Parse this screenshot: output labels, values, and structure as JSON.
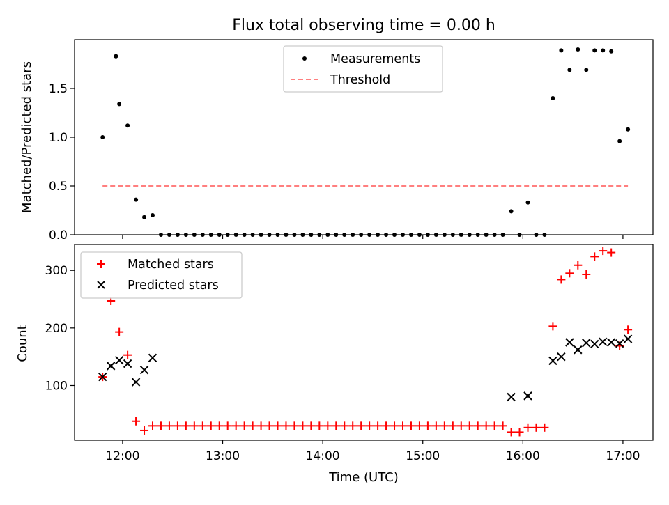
{
  "chart_data": {
    "type": "scatter",
    "title": "Flux total observing time = 0.00 h",
    "xlabel": "Time (UTC)",
    "xticks": [
      "12:00",
      "13:00",
      "14:00",
      "15:00",
      "16:00",
      "17:00"
    ],
    "x_tick_hours": [
      12,
      13,
      14,
      15,
      16,
      17
    ],
    "xlim": [
      11.52,
      17.3
    ],
    "panels": [
      {
        "ylabel": "Matched/Predicted stars",
        "ylim": [
          0,
          2.0
        ],
        "yticks": [
          "0.0",
          "0.5",
          "1.0",
          "1.5"
        ],
        "ytick_values": [
          0,
          0.5,
          1.0,
          1.5
        ],
        "legend": {
          "position": "upper center",
          "entries": [
            "Measurements",
            "Threshold"
          ]
        },
        "series": [
          {
            "name": "Measurements",
            "marker": "dot",
            "color": "#000000",
            "points": [
              [
                "11:48",
                1.0
              ],
              [
                "11:56",
                1.83
              ],
              [
                "11:56",
                1.83
              ],
              [
                "11:58",
                1.34
              ],
              [
                "12:03",
                1.12
              ],
              [
                "12:08",
                0.36
              ],
              [
                "12:13",
                0.18
              ],
              [
                "12:18",
                0.2
              ],
              [
                "12:23",
                0.0
              ],
              [
                "12:28",
                0.0
              ],
              [
                "12:33",
                0.0
              ],
              [
                "12:38",
                0.0
              ],
              [
                "12:43",
                0.0
              ],
              [
                "12:48",
                0.0
              ],
              [
                "12:53",
                0.0
              ],
              [
                "12:58",
                0.0
              ],
              [
                "13:03",
                0.0
              ],
              [
                "13:08",
                0.0
              ],
              [
                "13:13",
                0.0
              ],
              [
                "13:18",
                0.0
              ],
              [
                "13:23",
                0.0
              ],
              [
                "13:28",
                0.0
              ],
              [
                "13:33",
                0.0
              ],
              [
                "13:38",
                0.0
              ],
              [
                "13:43",
                0.0
              ],
              [
                "13:48",
                0.0
              ],
              [
                "13:53",
                0.0
              ],
              [
                "13:58",
                0.0
              ],
              [
                "14:03",
                0.0
              ],
              [
                "14:08",
                0.0
              ],
              [
                "14:13",
                0.0
              ],
              [
                "14:18",
                0.0
              ],
              [
                "14:23",
                0.0
              ],
              [
                "14:28",
                0.0
              ],
              [
                "14:33",
                0.0
              ],
              [
                "14:38",
                0.0
              ],
              [
                "14:43",
                0.0
              ],
              [
                "14:48",
                0.0
              ],
              [
                "14:53",
                0.0
              ],
              [
                "14:58",
                0.0
              ],
              [
                "15:03",
                0.0
              ],
              [
                "15:08",
                0.0
              ],
              [
                "15:13",
                0.0
              ],
              [
                "15:18",
                0.0
              ],
              [
                "15:23",
                0.0
              ],
              [
                "15:28",
                0.0
              ],
              [
                "15:33",
                0.0
              ],
              [
                "15:38",
                0.0
              ],
              [
                "15:43",
                0.0
              ],
              [
                "15:48",
                0.0
              ],
              [
                "15:53",
                0.24
              ],
              [
                "15:58",
                0.0
              ],
              [
                "16:03",
                0.33
              ],
              [
                "16:08",
                0.0
              ],
              [
                "16:13",
                0.0
              ],
              [
                "16:18",
                1.4
              ],
              [
                "16:23",
                1.89
              ],
              [
                "16:28",
                1.69
              ],
              [
                "16:33",
                1.9
              ],
              [
                "16:38",
                1.69
              ],
              [
                "16:43",
                1.89
              ],
              [
                "16:48",
                1.89
              ],
              [
                "16:53",
                1.88
              ],
              [
                "16:58",
                0.96
              ],
              [
                "17:03",
                1.08
              ]
            ]
          },
          {
            "name": "Threshold",
            "marker": "dashed-line",
            "color": "#ff7f7f",
            "x_range": [
              "11:48",
              "17:03"
            ],
            "y": 0.5
          }
        ]
      },
      {
        "ylabel": "Count",
        "ylim": [
          5,
          345
        ],
        "yticks": [
          "100",
          "200",
          "300"
        ],
        "ytick_values": [
          100,
          200,
          300
        ],
        "legend": {
          "position": "upper left",
          "entries": [
            "Matched stars",
            "Predicted stars"
          ]
        },
        "series": [
          {
            "name": "Matched stars",
            "marker": "plus",
            "color": "#ff0000",
            "points": [
              [
                "11:48",
                115
              ],
              [
                "11:53",
                247
              ],
              [
                "11:58",
                193
              ],
              [
                "12:03",
                153
              ],
              [
                "12:08",
                38
              ],
              [
                "12:13",
                22
              ],
              [
                "12:18",
                30
              ],
              [
                "12:23",
                30
              ],
              [
                "12:28",
                30
              ],
              [
                "12:33",
                30
              ],
              [
                "12:38",
                30
              ],
              [
                "12:43",
                30
              ],
              [
                "12:48",
                30
              ],
              [
                "12:53",
                30
              ],
              [
                "12:58",
                30
              ],
              [
                "13:03",
                30
              ],
              [
                "13:08",
                30
              ],
              [
                "13:13",
                30
              ],
              [
                "13:18",
                30
              ],
              [
                "13:23",
                30
              ],
              [
                "13:28",
                30
              ],
              [
                "13:33",
                30
              ],
              [
                "13:38",
                30
              ],
              [
                "13:43",
                30
              ],
              [
                "13:48",
                30
              ],
              [
                "13:53",
                30
              ],
              [
                "13:58",
                30
              ],
              [
                "14:03",
                30
              ],
              [
                "14:08",
                30
              ],
              [
                "14:13",
                30
              ],
              [
                "14:18",
                30
              ],
              [
                "14:23",
                30
              ],
              [
                "14:28",
                30
              ],
              [
                "14:33",
                30
              ],
              [
                "14:38",
                30
              ],
              [
                "14:43",
                30
              ],
              [
                "14:48",
                30
              ],
              [
                "14:53",
                30
              ],
              [
                "14:58",
                30
              ],
              [
                "15:03",
                30
              ],
              [
                "15:08",
                30
              ],
              [
                "15:13",
                30
              ],
              [
                "15:18",
                30
              ],
              [
                "15:23",
                30
              ],
              [
                "15:28",
                30
              ],
              [
                "15:33",
                30
              ],
              [
                "15:38",
                30
              ],
              [
                "15:43",
                30
              ],
              [
                "15:48",
                30
              ],
              [
                "15:53",
                19
              ],
              [
                "15:58",
                19
              ],
              [
                "16:03",
                27
              ],
              [
                "16:08",
                27
              ],
              [
                "16:13",
                27
              ],
              [
                "16:18",
                203
              ],
              [
                "16:23",
                284
              ],
              [
                "16:28",
                295
              ],
              [
                "16:33",
                309
              ],
              [
                "16:38",
                293
              ],
              [
                "16:43",
                324
              ],
              [
                "16:48",
                334
              ],
              [
                "16:53",
                331
              ],
              [
                "16:58",
                169
              ],
              [
                "17:03",
                197
              ]
            ]
          },
          {
            "name": "Predicted stars",
            "marker": "x",
            "color": "#000000",
            "points": [
              [
                "11:48",
                115
              ],
              [
                "11:53",
                134
              ],
              [
                "11:58",
                144
              ],
              [
                "12:03",
                138
              ],
              [
                "12:08",
                106
              ],
              [
                "12:13",
                127
              ],
              [
                "12:18",
                148
              ],
              [
                "15:53",
                80
              ],
              [
                "16:03",
                82
              ],
              [
                "16:18",
                143
              ],
              [
                "16:23",
                150
              ],
              [
                "16:28",
                175
              ],
              [
                "16:33",
                162
              ],
              [
                "16:38",
                174
              ],
              [
                "16:43",
                172
              ],
              [
                "16:48",
                176
              ],
              [
                "16:53",
                175
              ],
              [
                "16:58",
                173
              ],
              [
                "17:03",
                181
              ]
            ]
          }
        ]
      }
    ]
  }
}
